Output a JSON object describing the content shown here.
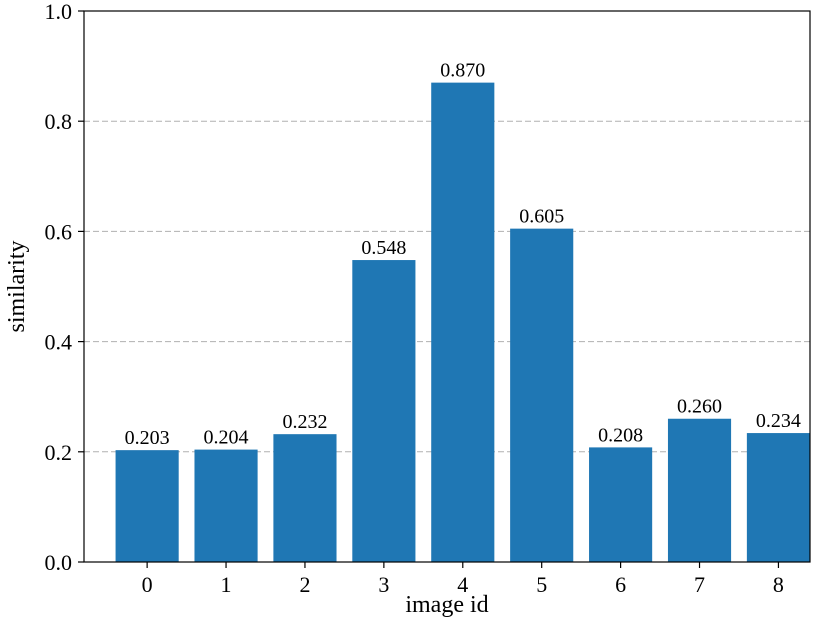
{
  "chart_data": {
    "type": "bar",
    "categories": [
      "0",
      "1",
      "2",
      "3",
      "4",
      "5",
      "6",
      "7",
      "8"
    ],
    "values": [
      0.203,
      0.204,
      0.232,
      0.548,
      0.87,
      0.605,
      0.208,
      0.26,
      0.234
    ],
    "value_labels": [
      "0.203",
      "0.204",
      "0.232",
      "0.548",
      "0.870",
      "0.605",
      "0.208",
      "0.260",
      "0.234"
    ],
    "title": "",
    "xlabel": "image id",
    "ylabel": "similarity",
    "ylim": [
      0.0,
      1.0
    ],
    "yticks": [
      0.0,
      0.2,
      0.4,
      0.6,
      0.8,
      1.0
    ],
    "ytick_labels": [
      "0.0",
      "0.2",
      "0.4",
      "0.6",
      "0.8",
      "1.0"
    ],
    "grid": "y-dashed",
    "legend": "none",
    "bar_color": "#1f77b4",
    "grid_color": "#b0b0b0"
  }
}
